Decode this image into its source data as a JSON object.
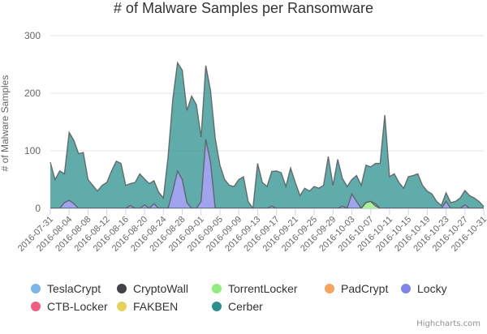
{
  "chart_data": {
    "type": "area",
    "stacked": true,
    "title": "# of Malware Samples per Ransomware",
    "ylabel": "# of Malware Samples",
    "xlabel": "",
    "ylim": [
      0,
      300
    ],
    "yticks": [
      0,
      100,
      200,
      300
    ],
    "grid": true,
    "legend_position": "bottom",
    "x_start": "2016-07-31",
    "x_end": "2016-10-31",
    "x_tick_labels": [
      "2016-07-31",
      "2016-08-04",
      "2016-08-08",
      "2016-08-12",
      "2016-08-16",
      "2016-08-20",
      "2016-08-24",
      "2016-08-28",
      "2016-09-01",
      "2016-09-05",
      "2016-09-09",
      "2016-09-13",
      "2016-09-17",
      "2016-09-21",
      "2016-09-25",
      "2016-09-29",
      "2016-10-03",
      "2016-10-07",
      "2016-10-11",
      "2016-10-15",
      "2016-10-19",
      "2016-10-23",
      "2016-10-27",
      "2016-10-31"
    ],
    "series": [
      {
        "name": "TeslaCrypt",
        "color": "#7cb5ec",
        "values": []
      },
      {
        "name": "CryptoWall",
        "color": "#434348",
        "values": []
      },
      {
        "name": "TorrentLocker",
        "color": "#90ed7d",
        "values": [
          {
            "x": "2016-10-06",
            "y": 10
          },
          {
            "x": "2016-10-07",
            "y": 12
          },
          {
            "x": "2016-10-08",
            "y": 4
          }
        ]
      },
      {
        "name": "PadCrypt",
        "color": "#f7a35c",
        "values": []
      },
      {
        "name": "Locky",
        "color": "#8085e9",
        "values": [
          {
            "x": "2016-08-03",
            "y": 10
          },
          {
            "x": "2016-08-04",
            "y": 14
          },
          {
            "x": "2016-08-05",
            "y": 8
          },
          {
            "x": "2016-08-17",
            "y": 5
          },
          {
            "x": "2016-08-20",
            "y": 6
          },
          {
            "x": "2016-08-22",
            "y": 8
          },
          {
            "x": "2016-08-26",
            "y": 30
          },
          {
            "x": "2016-08-27",
            "y": 65
          },
          {
            "x": "2016-08-28",
            "y": 50
          },
          {
            "x": "2016-08-29",
            "y": 10
          },
          {
            "x": "2016-09-01",
            "y": 12
          },
          {
            "x": "2016-09-02",
            "y": 120
          },
          {
            "x": "2016-09-03",
            "y": 80
          },
          {
            "x": "2016-09-16",
            "y": 4
          },
          {
            "x": "2016-10-01",
            "y": 4
          },
          {
            "x": "2016-10-03",
            "y": 25
          },
          {
            "x": "2016-10-04",
            "y": 12
          },
          {
            "x": "2016-10-08",
            "y": 4
          },
          {
            "x": "2016-10-23",
            "y": 12
          },
          {
            "x": "2016-10-27",
            "y": 6
          }
        ]
      },
      {
        "name": "CTB-Locker",
        "color": "#f15c80",
        "values": []
      },
      {
        "name": "FAKBEN",
        "color": "#e4d354",
        "values": []
      },
      {
        "name": "Cerber",
        "color": "#2b908f",
        "values": [
          {
            "x": "2016-07-31",
            "y": 80
          },
          {
            "x": "2016-08-01",
            "y": 50
          },
          {
            "x": "2016-08-02",
            "y": 65
          },
          {
            "x": "2016-08-03",
            "y": 50
          },
          {
            "x": "2016-08-04",
            "y": 118
          },
          {
            "x": "2016-08-05",
            "y": 110
          },
          {
            "x": "2016-08-06",
            "y": 95
          },
          {
            "x": "2016-08-07",
            "y": 97
          },
          {
            "x": "2016-08-08",
            "y": 50
          },
          {
            "x": "2016-08-09",
            "y": 40
          },
          {
            "x": "2016-08-10",
            "y": 30
          },
          {
            "x": "2016-08-11",
            "y": 40
          },
          {
            "x": "2016-08-12",
            "y": 45
          },
          {
            "x": "2016-08-13",
            "y": 65
          },
          {
            "x": "2016-08-14",
            "y": 82
          },
          {
            "x": "2016-08-15",
            "y": 78
          },
          {
            "x": "2016-08-16",
            "y": 40
          },
          {
            "x": "2016-08-17",
            "y": 38
          },
          {
            "x": "2016-08-18",
            "y": 45
          },
          {
            "x": "2016-08-19",
            "y": 60
          },
          {
            "x": "2016-08-20",
            "y": 45
          },
          {
            "x": "2016-08-21",
            "y": 43
          },
          {
            "x": "2016-08-22",
            "y": 40
          },
          {
            "x": "2016-08-23",
            "y": 28
          },
          {
            "x": "2016-08-24",
            "y": 18
          },
          {
            "x": "2016-08-25",
            "y": 90
          },
          {
            "x": "2016-08-26",
            "y": 160
          },
          {
            "x": "2016-08-27",
            "y": 188
          },
          {
            "x": "2016-08-28",
            "y": 190
          },
          {
            "x": "2016-08-29",
            "y": 160
          },
          {
            "x": "2016-08-30",
            "y": 195
          },
          {
            "x": "2016-08-31",
            "y": 180
          },
          {
            "x": "2016-09-01",
            "y": 112
          },
          {
            "x": "2016-09-02",
            "y": 128
          },
          {
            "x": "2016-09-03",
            "y": 125
          },
          {
            "x": "2016-09-04",
            "y": 122
          },
          {
            "x": "2016-09-05",
            "y": 75
          },
          {
            "x": "2016-09-06",
            "y": 50
          },
          {
            "x": "2016-09-07",
            "y": 40
          },
          {
            "x": "2016-09-08",
            "y": 38
          },
          {
            "x": "2016-09-09",
            "y": 50
          },
          {
            "x": "2016-09-10",
            "y": 55
          },
          {
            "x": "2016-09-11",
            "y": 12
          },
          {
            "x": "2016-09-12",
            "y": 0
          },
          {
            "x": "2016-09-13",
            "y": 78
          },
          {
            "x": "2016-09-14",
            "y": 45
          },
          {
            "x": "2016-09-15",
            "y": 38
          },
          {
            "x": "2016-09-16",
            "y": 60
          },
          {
            "x": "2016-09-17",
            "y": 65
          },
          {
            "x": "2016-09-18",
            "y": 62
          },
          {
            "x": "2016-09-19",
            "y": 38
          },
          {
            "x": "2016-09-20",
            "y": 70
          },
          {
            "x": "2016-09-21",
            "y": 45
          },
          {
            "x": "2016-09-22",
            "y": 22
          },
          {
            "x": "2016-09-23",
            "y": 35
          },
          {
            "x": "2016-09-24",
            "y": 30
          },
          {
            "x": "2016-09-25",
            "y": 38
          },
          {
            "x": "2016-09-26",
            "y": 35
          },
          {
            "x": "2016-09-27",
            "y": 40
          },
          {
            "x": "2016-09-28",
            "y": 90
          },
          {
            "x": "2016-09-29",
            "y": 40
          },
          {
            "x": "2016-09-30",
            "y": 85
          },
          {
            "x": "2016-10-01",
            "y": 48
          },
          {
            "x": "2016-10-02",
            "y": 38
          },
          {
            "x": "2016-10-03",
            "y": 25
          },
          {
            "x": "2016-10-04",
            "y": 45
          },
          {
            "x": "2016-10-05",
            "y": 40
          },
          {
            "x": "2016-10-06",
            "y": 65
          },
          {
            "x": "2016-10-07",
            "y": 60
          },
          {
            "x": "2016-10-08",
            "y": 70
          },
          {
            "x": "2016-10-09",
            "y": 78
          },
          {
            "x": "2016-10-10",
            "y": 162
          },
          {
            "x": "2016-10-11",
            "y": 55
          },
          {
            "x": "2016-10-12",
            "y": 60
          },
          {
            "x": "2016-10-13",
            "y": 45
          },
          {
            "x": "2016-10-14",
            "y": 35
          },
          {
            "x": "2016-10-15",
            "y": 55
          },
          {
            "x": "2016-10-16",
            "y": 57
          },
          {
            "x": "2016-10-17",
            "y": 60
          },
          {
            "x": "2016-10-18",
            "y": 40
          },
          {
            "x": "2016-10-19",
            "y": 30
          },
          {
            "x": "2016-10-20",
            "y": 25
          },
          {
            "x": "2016-10-21",
            "y": 12
          },
          {
            "x": "2016-10-22",
            "y": 5
          },
          {
            "x": "2016-10-23",
            "y": 15
          },
          {
            "x": "2016-10-24",
            "y": 10
          },
          {
            "x": "2016-10-25",
            "y": 12
          },
          {
            "x": "2016-10-26",
            "y": 18
          },
          {
            "x": "2016-10-27",
            "y": 25
          },
          {
            "x": "2016-10-28",
            "y": 22
          },
          {
            "x": "2016-10-29",
            "y": 18
          },
          {
            "x": "2016-10-30",
            "y": 12
          },
          {
            "x": "2016-10-31",
            "y": 3
          }
        ]
      }
    ]
  },
  "credits": "Highcharts.com"
}
